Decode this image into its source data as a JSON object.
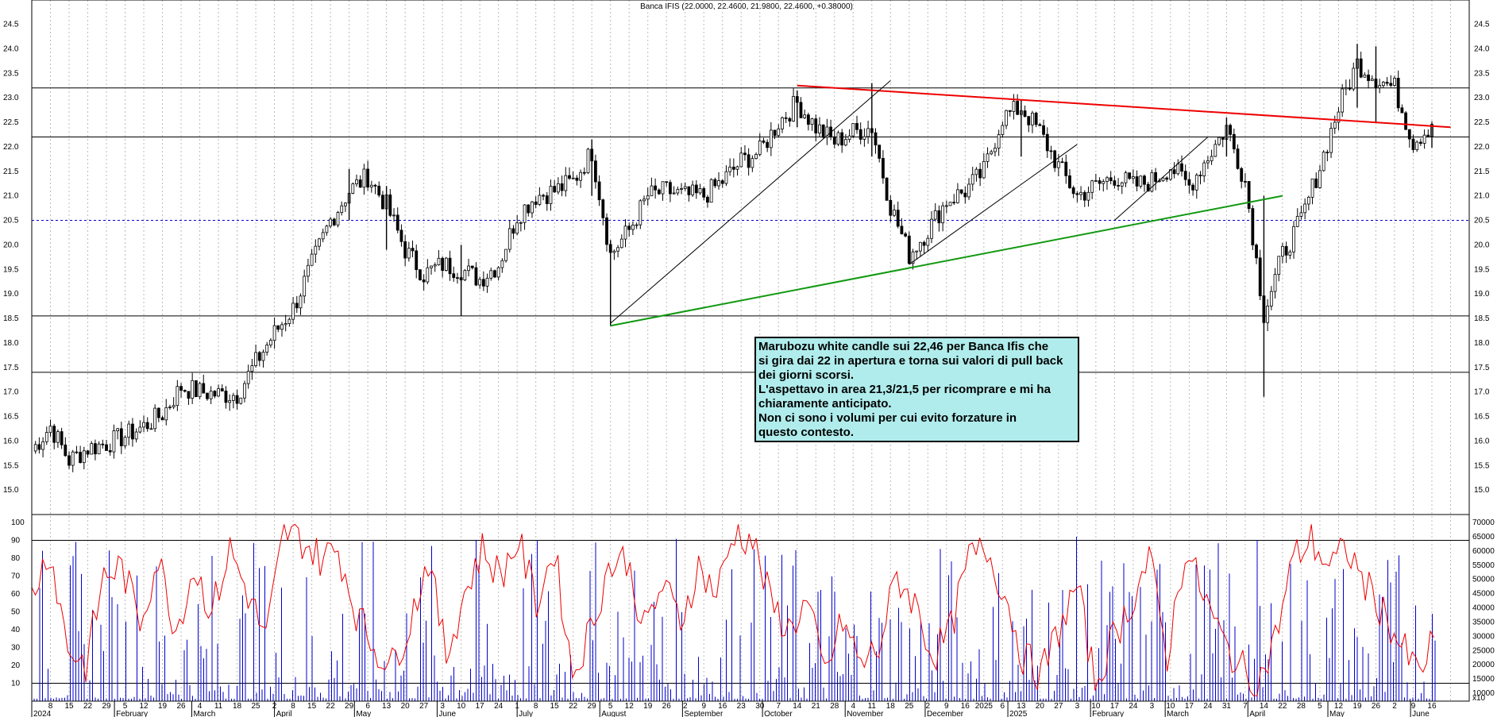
{
  "title": "Banca IFIS (22.0000, 22.4600, 21.9800, 22.4600, +0.38000)",
  "annotation": [
    "Marubozu white candle sui 22,46 per Banca Ifis che",
    "si gira dai 22 in apertura e torna sui valori di pull back",
    "dei giorni scorsi.",
    "L'aspettavo in area 21,3/21,5 per ricomprare e mi ha",
    "chiaramente anticipato.",
    "Non ci sono i volumi per cui evito forzature in",
    "questo contesto."
  ],
  "colors": {
    "price": "#000000",
    "downtrend_line": "#ee0000",
    "uptrend_line": "#119911",
    "level_dashed": "#0000cc",
    "oscillator": "#ee0000",
    "volume": "#0000cc",
    "note_bg": "#b0ecec"
  },
  "chart_data": [
    {
      "type": "candlestick",
      "ylim": [
        14.5,
        24.8
      ],
      "yticks": [
        "15.0",
        "15.5",
        "16.0",
        "16.5",
        "17.0",
        "17.5",
        "18.0",
        "18.5",
        "19.0",
        "19.5",
        "20.0",
        "20.5",
        "21.0",
        "21.5",
        "22.0",
        "22.5",
        "23.0",
        "23.5",
        "24.0",
        "24.5"
      ],
      "horizontal_lines": [
        23.2,
        22.2,
        18.55,
        17.4
      ],
      "dashed_line": 20.5,
      "downtrend_line": {
        "from": [
          "2024-10-14",
          23.25
        ],
        "to": [
          "2025-06-16",
          22.4
        ]
      },
      "uptrend_line": {
        "from": [
          "2024-08-05",
          18.35
        ],
        "to": [
          "2025-04-14",
          21.0
        ]
      },
      "channel_lines": [
        {
          "from": [
            "2024-08-05",
            18.4
          ],
          "to": [
            "2024-11-18",
            23.35
          ]
        },
        {
          "from": [
            "2024-11-25",
            19.6
          ],
          "to": [
            "2025-01-27",
            22.05
          ]
        },
        {
          "from": [
            "2025-02-10",
            20.5
          ],
          "to": [
            "2025-03-17",
            22.2
          ]
        }
      ],
      "closes": [
        {
          "d": "2024-01-01",
          "c": 15.8
        },
        {
          "d": "2024-01-08",
          "c": 16.3
        },
        {
          "d": "2024-01-15",
          "c": 15.6
        },
        {
          "d": "2024-01-22",
          "c": 15.85
        },
        {
          "d": "2024-01-29",
          "c": 15.95
        },
        {
          "d": "2024-02-05",
          "c": 16.1
        },
        {
          "d": "2024-02-12",
          "c": 16.3
        },
        {
          "d": "2024-02-19",
          "c": 16.55
        },
        {
          "d": "2024-02-26",
          "c": 17.1
        },
        {
          "d": "2024-03-04",
          "c": 17.0
        },
        {
          "d": "2024-03-11",
          "c": 16.95
        },
        {
          "d": "2024-03-18",
          "c": 16.95
        },
        {
          "d": "2024-03-25",
          "c": 17.6
        },
        {
          "d": "2024-04-01",
          "c": 18.2
        },
        {
          "d": "2024-04-08",
          "c": 18.7
        },
        {
          "d": "2024-04-15",
          "c": 19.6
        },
        {
          "d": "2024-04-22",
          "c": 20.5
        },
        {
          "d": "2024-04-29",
          "c": 21.1
        },
        {
          "d": "2024-05-06",
          "c": 21.4
        },
        {
          "d": "2024-05-13",
          "c": 20.8
        },
        {
          "d": "2024-05-20",
          "c": 19.9
        },
        {
          "d": "2024-05-27",
          "c": 19.4
        },
        {
          "d": "2024-06-03",
          "c": 19.6
        },
        {
          "d": "2024-06-10",
          "c": 19.5
        },
        {
          "d": "2024-06-17",
          "c": 19.3
        },
        {
          "d": "2024-06-24",
          "c": 19.6
        },
        {
          "d": "2024-07-01",
          "c": 20.6
        },
        {
          "d": "2024-07-08",
          "c": 21.0
        },
        {
          "d": "2024-07-15",
          "c": 21.1
        },
        {
          "d": "2024-07-22",
          "c": 21.3
        },
        {
          "d": "2024-07-29",
          "c": 21.9
        },
        {
          "d": "2024-08-05",
          "c": 19.8
        },
        {
          "d": "2024-08-12",
          "c": 20.3
        },
        {
          "d": "2024-08-19",
          "c": 21.0
        },
        {
          "d": "2024-08-26",
          "c": 21.1
        },
        {
          "d": "2024-09-02",
          "c": 21.0
        },
        {
          "d": "2024-09-09",
          "c": 21.0
        },
        {
          "d": "2024-09-16",
          "c": 21.3
        },
        {
          "d": "2024-09-23",
          "c": 21.7
        },
        {
          "d": "2024-09-30",
          "c": 21.9
        },
        {
          "d": "2024-10-07",
          "c": 22.5
        },
        {
          "d": "2024-10-14",
          "c": 22.9
        },
        {
          "d": "2024-10-21",
          "c": 22.4
        },
        {
          "d": "2024-10-28",
          "c": 22.1
        },
        {
          "d": "2024-11-04",
          "c": 22.3
        },
        {
          "d": "2024-11-11",
          "c": 22.4
        },
        {
          "d": "2024-11-18",
          "c": 20.8
        },
        {
          "d": "2024-11-25",
          "c": 19.8
        },
        {
          "d": "2024-12-02",
          "c": 20.3
        },
        {
          "d": "2024-12-09",
          "c": 20.9
        },
        {
          "d": "2024-12-16",
          "c": 21.1
        },
        {
          "d": "2024-12-23",
          "c": 21.5
        },
        {
          "d": "2024-12-30",
          "c": 22.6
        },
        {
          "d": "2025-01-06",
          "c": 22.8
        },
        {
          "d": "2025-01-13",
          "c": 22.3
        },
        {
          "d": "2025-01-20",
          "c": 21.6
        },
        {
          "d": "2025-01-27",
          "c": 21.0
        },
        {
          "d": "2025-02-03",
          "c": 21.2
        },
        {
          "d": "2025-02-10",
          "c": 21.4
        },
        {
          "d": "2025-02-17",
          "c": 21.2
        },
        {
          "d": "2025-02-24",
          "c": 21.3
        },
        {
          "d": "2025-03-03",
          "c": 21.6
        },
        {
          "d": "2025-03-10",
          "c": 21.2
        },
        {
          "d": "2025-03-17",
          "c": 21.8
        },
        {
          "d": "2025-03-24",
          "c": 22.4
        },
        {
          "d": "2025-03-31",
          "c": 21.3
        },
        {
          "d": "2025-04-07",
          "c": 18.6
        },
        {
          "d": "2025-04-14",
          "c": 19.8
        },
        {
          "d": "2025-04-21",
          "c": 20.5
        },
        {
          "d": "2025-04-28",
          "c": 21.6
        },
        {
          "d": "2025-05-05",
          "c": 22.8
        },
        {
          "d": "2025-05-12",
          "c": 23.7
        },
        {
          "d": "2025-05-19",
          "c": 23.4
        },
        {
          "d": "2025-05-26",
          "c": 23.2
        },
        {
          "d": "2025-06-02",
          "c": 22.1
        },
        {
          "d": "2025-06-09",
          "c": 22.46
        }
      ],
      "wicks": [
        {
          "d": "2024-04-29",
          "h": 21.55,
          "l": 20.5
        },
        {
          "d": "2024-05-13",
          "h": 21.2,
          "l": 19.9
        },
        {
          "d": "2024-06-10",
          "h": 20.0,
          "l": 18.55
        },
        {
          "d": "2024-07-29",
          "h": 22.15,
          "l": 21.0
        },
        {
          "d": "2024-08-05",
          "h": 20.1,
          "l": 18.35
        },
        {
          "d": "2024-10-14",
          "h": 23.15,
          "l": 22.4
        },
        {
          "d": "2024-11-11",
          "h": 23.3,
          "l": 21.8
        },
        {
          "d": "2024-11-25",
          "h": 20.0,
          "l": 19.6
        },
        {
          "d": "2025-01-06",
          "h": 22.95,
          "l": 21.8
        },
        {
          "d": "2025-03-24",
          "h": 22.6,
          "l": 21.8
        },
        {
          "d": "2025-04-07",
          "h": 21.0,
          "l": 16.9
        },
        {
          "d": "2025-05-12",
          "h": 24.1,
          "l": 22.8
        },
        {
          "d": "2025-05-19",
          "h": 24.05,
          "l": 22.5
        },
        {
          "d": "2025-06-09",
          "h": 22.48,
          "l": 21.98
        }
      ]
    },
    {
      "type": "oscillator_and_volume",
      "ylim": [
        0,
        100
      ],
      "yticks": [
        "10",
        "20",
        "30",
        "40",
        "50",
        "60",
        "70",
        "80",
        "90",
        "100"
      ],
      "horizontal_lines": [
        10,
        90
      ],
      "volume_ticks": [
        "10000",
        "15000",
        "20000",
        "25000",
        "30000",
        "35000",
        "40000",
        "45000",
        "50000",
        "55000",
        "60000",
        "65000",
        "70000"
      ],
      "volume_scale_label": "x10",
      "oscillator_weekly": [
        60,
        85,
        30,
        20,
        70,
        75,
        45,
        80,
        40,
        75,
        50,
        85,
        60,
        35,
        95,
        90,
        80,
        85,
        50,
        30,
        20,
        45,
        80,
        25,
        60,
        85,
        70,
        90,
        55,
        85,
        15,
        40,
        75,
        80,
        40,
        65,
        45,
        75,
        60,
        95,
        90,
        55,
        40,
        55,
        15,
        45,
        20,
        30,
        70,
        55,
        25,
        40,
        80,
        85,
        60,
        25,
        15,
        40,
        65,
        10,
        35,
        55,
        80,
        25,
        85,
        60,
        35,
        20,
        8,
        35,
        80,
        90,
        75,
        85,
        65,
        50,
        30,
        15,
        40
      ]
    }
  ],
  "x_axis": {
    "day_labels": [
      "8",
      "15",
      "22",
      "29",
      "5",
      "12",
      "19",
      "26",
      "4",
      "11",
      "18",
      "25",
      "2",
      "8",
      "15",
      "22",
      "29",
      "6",
      "13",
      "20",
      "27",
      "3",
      "10",
      "17",
      "24",
      "1",
      "8",
      "15",
      "22",
      "29",
      "5",
      "12",
      "19",
      "26",
      "2",
      "9",
      "16",
      "23",
      "30",
      "7",
      "14",
      "21",
      "28",
      "4",
      "11",
      "18",
      "25",
      "2",
      "9",
      "16",
      "2025",
      "6",
      "13",
      "20",
      "27",
      "3",
      "10",
      "17",
      "24",
      "3",
      "10",
      "17",
      "24",
      "31",
      "7",
      "14",
      "22",
      "28",
      "5",
      "12",
      "19",
      "26",
      "2",
      "9",
      "16"
    ],
    "month_labels": [
      "2024",
      "February",
      "March",
      "April",
      "May",
      "June",
      "July",
      "August",
      "September",
      "October",
      "November",
      "December",
      "2025",
      "February",
      "March",
      "April",
      "May",
      "June"
    ]
  }
}
